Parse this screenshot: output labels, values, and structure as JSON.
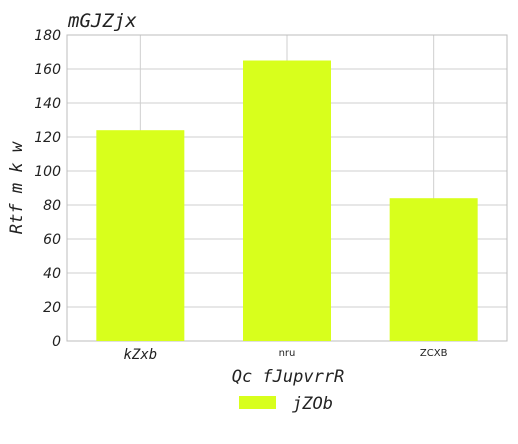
{
  "chart_data": {
    "type": "bar",
    "title": "mGJZjx",
    "xlabel": "Qc fJupvrrR",
    "ylabel": "Rtf m k w",
    "categories": [
      "kZxb",
      "nru",
      "ZCXB"
    ],
    "series": [
      {
        "name": "jZOb",
        "values": [
          124,
          165,
          84
        ],
        "color": "#d8ff1c"
      }
    ],
    "ylim": [
      0,
      180
    ],
    "yticks": [
      0,
      20,
      40,
      60,
      80,
      100,
      120,
      140,
      160,
      180
    ],
    "grid": true,
    "legend_position": "bottom-center"
  }
}
